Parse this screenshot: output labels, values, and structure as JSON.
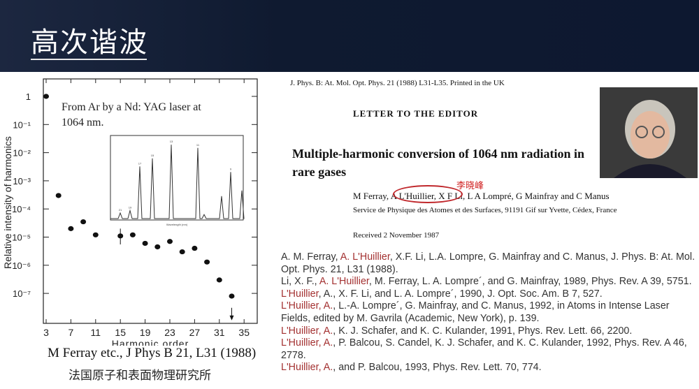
{
  "slide": {
    "title": "高次谐波"
  },
  "chart_data": {
    "type": "scatter",
    "annotation": "From Ar by a Nd: YAG laser at 1064 nm.",
    "xlabel": "Harmonic order",
    "ylabel": "Relative intensity of harmonics",
    "x_ticks": [
      "3",
      "7",
      "11",
      "15",
      "19",
      "23",
      "27",
      "31",
      "35"
    ],
    "y_ticks": [
      "1",
      "10⁻¹",
      "10⁻²",
      "10⁻³",
      "10⁻⁴",
      "10⁻⁵",
      "10⁻⁶",
      "10⁻⁷"
    ],
    "xlim": [
      3,
      35
    ],
    "ylim": [
      1e-08,
      10
    ],
    "yscale": "log",
    "points": [
      [
        3,
        1
      ],
      [
        5,
        0.0003
      ],
      [
        7,
        2e-05
      ],
      [
        9,
        3.5e-05
      ],
      [
        11,
        1.2e-05
      ],
      [
        15,
        1.1e-05
      ],
      [
        17,
        1.2e-05
      ],
      [
        19,
        6e-06
      ],
      [
        21,
        4.5e-06
      ],
      [
        23,
        7e-06
      ],
      [
        25,
        3e-06
      ],
      [
        27,
        4e-06
      ],
      [
        29,
        1.3e-06
      ],
      [
        31,
        3e-07
      ],
      [
        33,
        8e-08
      ]
    ],
    "error_bar": {
      "x": 15,
      "low": 5.5e-06,
      "high": 2e-05
    },
    "upper_limit": {
      "x": 33,
      "value": 1.3e-08
    },
    "inset": {
      "xlabel": "Wavelength (nm)",
      "peak_labels": [
        "21",
        "19",
        "17",
        "15",
        "13",
        "11",
        "9"
      ]
    }
  },
  "chart_caption": "M  Ferray etc., J Phys B 21, L31 (1988)",
  "institute": "法国原子和表面物理研究所",
  "paper": {
    "journal": "J. Phys. B: At. Mol. Opt. Phys. 21 (1988) L31-L35.  Printed in the UK",
    "section": "LETTER TO THE EDITOR",
    "title": "Multiple-harmonic conversion of 1064 nm radiation in rare gases",
    "authors": "M Ferray, A L'Huillier, X F Li, L A Lompré, G Mainfray and C Manus",
    "annotation_name": "李晓峰",
    "affiliation": "Service de Physique des Atomes et des Surfaces, 91191 Gif sur Yvette, Cédex, France",
    "received": "Received 2 November 1987"
  },
  "references": [
    [
      [
        "A. M. Ferray, ",
        0
      ],
      [
        "A. L'Huillier",
        1
      ],
      [
        ", X.F. Li, L.A. Lompre, G. Mainfray and C. Manus, J. Phys. B: At. Mol. Opt. Phys. 21, L31 (1988).",
        0
      ]
    ],
    [
      [
        "Li, X. F., ",
        0
      ],
      [
        "A. L'Huillier",
        1
      ],
      [
        ", M. Ferray, L. A. Lompre´, and G. Mainfray, 1989, Phys. Rev. A 39, 5751.",
        0
      ]
    ],
    [
      [
        "L'Huillier",
        1
      ],
      [
        ", A., X. F. Li, and L. A. Lompre´, 1990, J. Opt. Soc. Am. B 7, 527.",
        0
      ]
    ],
    [
      [
        "L'Huillier, A.",
        1
      ],
      [
        ", L.-A. Lompre´, G. Mainfray, and C. Manus, 1992, in Atoms in Intense Laser Fields, edited by M. Gavrila (Academic, New York), p. 139.",
        0
      ]
    ],
    [
      [
        "L'Huillier, A.",
        1
      ],
      [
        ", K. J. Schafer, and K. C. Kulander, 1991, Phys. Rev. Lett. 66, 2200.",
        0
      ]
    ],
    [
      [
        "L'Huillier, A.",
        1
      ],
      [
        ", P. Balcou, S. Candel, K. J. Schafer, and K. C. Kulander, 1992, Phys. Rev. A 46, 2778.",
        0
      ]
    ],
    [
      [
        "L'Huillier, A.",
        1
      ],
      [
        ", and P. Balcou, 1993, Phys. Rev. Lett. 70, 774.",
        0
      ]
    ]
  ],
  "colors": {
    "header": "#0f1a30",
    "highlight": "#a33030",
    "circle": "#c0282c"
  }
}
